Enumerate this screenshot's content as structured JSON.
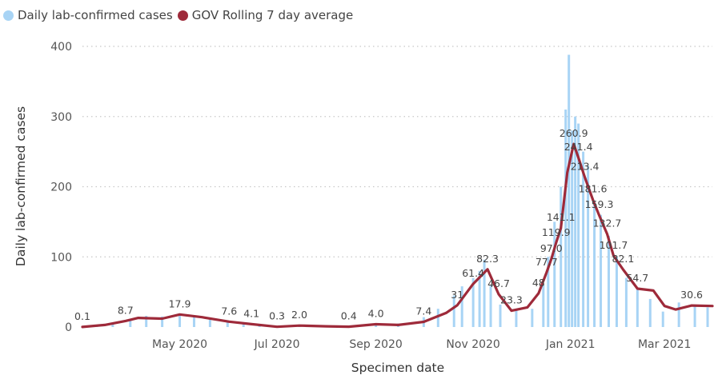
{
  "legend": {
    "items": [
      {
        "label": "Daily lab-confirmed cases",
        "color": "#a8d4f5"
      },
      {
        "label": "GOV Rolling 7 day average",
        "color": "#9e2a3a"
      }
    ]
  },
  "chart_data": {
    "type": "bar",
    "title": "",
    "xlabel": "Specimen date",
    "ylabel": "Daily lab-confirmed cases",
    "ylim": [
      0,
      400
    ],
    "yticks": [
      0,
      100,
      200,
      300,
      400
    ],
    "xlim": [
      "2020-03-01",
      "2021-03-31"
    ],
    "xticks": [
      {
        "date": "2020-05-01",
        "label": "May 2020"
      },
      {
        "date": "2020-07-01",
        "label": "Jul 2020"
      },
      {
        "date": "2020-09-01",
        "label": "Sep 2020"
      },
      {
        "date": "2020-11-01",
        "label": "Nov 2020"
      },
      {
        "date": "2021-01-01",
        "label": "Jan 2021"
      },
      {
        "date": "2021-03-01",
        "label": "Mar 2021"
      }
    ],
    "grid": true,
    "legend_position": "top-left",
    "series": [
      {
        "name": "Daily lab-confirmed cases",
        "type": "bar",
        "color": "#a8d4f5",
        "points": [
          [
            "2020-03-10",
            2
          ],
          [
            "2020-03-20",
            6
          ],
          [
            "2020-03-31",
            11
          ],
          [
            "2020-04-10",
            16
          ],
          [
            "2020-04-20",
            15
          ],
          [
            "2020-05-01",
            18
          ],
          [
            "2020-05-10",
            15
          ],
          [
            "2020-05-20",
            11
          ],
          [
            "2020-05-31",
            8
          ],
          [
            "2020-06-10",
            5
          ],
          [
            "2020-06-20",
            3
          ],
          [
            "2020-07-01",
            2
          ],
          [
            "2020-07-15",
            1
          ],
          [
            "2020-08-01",
            2
          ],
          [
            "2020-08-15",
            1
          ],
          [
            "2020-09-01",
            4
          ],
          [
            "2020-09-15",
            5
          ],
          [
            "2020-10-01",
            14
          ],
          [
            "2020-10-10",
            26
          ],
          [
            "2020-10-20",
            45
          ],
          [
            "2020-10-25",
            58
          ],
          [
            "2020-11-01",
            70
          ],
          [
            "2020-11-05",
            80
          ],
          [
            "2020-11-08",
            96
          ],
          [
            "2020-11-12",
            60
          ],
          [
            "2020-11-18",
            32
          ],
          [
            "2020-11-28",
            24
          ],
          [
            "2020-12-08",
            26
          ],
          [
            "2020-12-15",
            60
          ],
          [
            "2020-12-18",
            100
          ],
          [
            "2020-12-22",
            150
          ],
          [
            "2020-12-26",
            200
          ],
          [
            "2020-12-29",
            310
          ],
          [
            "2020-12-31",
            388
          ],
          [
            "2021-01-02",
            280
          ],
          [
            "2021-01-04",
            300
          ],
          [
            "2021-01-06",
            290
          ],
          [
            "2021-01-09",
            250
          ],
          [
            "2021-01-12",
            230
          ],
          [
            "2021-01-16",
            180
          ],
          [
            "2021-01-20",
            160
          ],
          [
            "2021-01-25",
            130
          ],
          [
            "2021-01-30",
            100
          ],
          [
            "2021-02-05",
            70
          ],
          [
            "2021-02-12",
            55
          ],
          [
            "2021-02-20",
            40
          ],
          [
            "2021-02-28",
            22
          ],
          [
            "2021-03-10",
            35
          ],
          [
            "2021-03-20",
            30
          ],
          [
            "2021-03-28",
            28
          ]
        ]
      },
      {
        "name": "GOV Rolling 7 day average",
        "type": "line",
        "color": "#9e2a3a",
        "points": [
          [
            "2020-03-01",
            0.1
          ],
          [
            "2020-03-15",
            3
          ],
          [
            "2020-03-28",
            8.7
          ],
          [
            "2020-04-05",
            13
          ],
          [
            "2020-04-20",
            12
          ],
          [
            "2020-05-01",
            17.9
          ],
          [
            "2020-05-15",
            14
          ],
          [
            "2020-06-01",
            7.6
          ],
          [
            "2020-06-15",
            4.1
          ],
          [
            "2020-07-01",
            0.3
          ],
          [
            "2020-07-15",
            2.0
          ],
          [
            "2020-08-01",
            1
          ],
          [
            "2020-08-15",
            0.4
          ],
          [
            "2020-09-01",
            4.0
          ],
          [
            "2020-09-15",
            3
          ],
          [
            "2020-10-01",
            7.4
          ],
          [
            "2020-10-15",
            20
          ],
          [
            "2020-10-22",
            31
          ],
          [
            "2020-11-01",
            61.4
          ],
          [
            "2020-11-10",
            82.3
          ],
          [
            "2020-11-17",
            46.7
          ],
          [
            "2020-11-25",
            23.3
          ],
          [
            "2020-12-05",
            28
          ],
          [
            "2020-12-12",
            48
          ],
          [
            "2020-12-17",
            77.7
          ],
          [
            "2020-12-20",
            97.0
          ],
          [
            "2020-12-23",
            119.9
          ],
          [
            "2020-12-26",
            141.1
          ],
          [
            "2020-12-30",
            220
          ],
          [
            "2021-01-03",
            260.9
          ],
          [
            "2021-01-06",
            241.4
          ],
          [
            "2021-01-10",
            213.4
          ],
          [
            "2021-01-15",
            181.6
          ],
          [
            "2021-01-19",
            159.3
          ],
          [
            "2021-01-24",
            132.7
          ],
          [
            "2021-01-28",
            101.7
          ],
          [
            "2021-02-03",
            82.1
          ],
          [
            "2021-02-12",
            54.7
          ],
          [
            "2021-02-22",
            52
          ],
          [
            "2021-03-01",
            30
          ],
          [
            "2021-03-08",
            25
          ],
          [
            "2021-03-18",
            30.6
          ],
          [
            "2021-03-31",
            30
          ]
        ]
      }
    ],
    "data_labels": [
      {
        "date": "2020-03-01",
        "value": 0.1,
        "text": "0.1"
      },
      {
        "date": "2020-03-28",
        "value": 8.7,
        "text": "8.7"
      },
      {
        "date": "2020-05-01",
        "value": 17.9,
        "text": "17.9"
      },
      {
        "date": "2020-06-01",
        "value": 7.6,
        "text": "7.6"
      },
      {
        "date": "2020-06-15",
        "value": 4.1,
        "text": "4.1"
      },
      {
        "date": "2020-07-01",
        "value": 0.3,
        "text": "0.3"
      },
      {
        "date": "2020-07-15",
        "value": 2.0,
        "text": "2.0"
      },
      {
        "date": "2020-08-15",
        "value": 0.4,
        "text": "0.4"
      },
      {
        "date": "2020-09-01",
        "value": 4.0,
        "text": "4.0"
      },
      {
        "date": "2020-10-01",
        "value": 7.4,
        "text": "7.4"
      },
      {
        "date": "2020-10-22",
        "value": 31,
        "text": "31"
      },
      {
        "date": "2020-11-01",
        "value": 61.4,
        "text": "61.4"
      },
      {
        "date": "2020-11-10",
        "value": 82.3,
        "text": "82.3"
      },
      {
        "date": "2020-11-17",
        "value": 46.7,
        "text": "46.7"
      },
      {
        "date": "2020-11-25",
        "value": 23.3,
        "text": "23.3"
      },
      {
        "date": "2020-12-12",
        "value": 48,
        "text": "48"
      },
      {
        "date": "2020-12-17",
        "value": 77.7,
        "text": "77.7"
      },
      {
        "date": "2020-12-20",
        "value": 97.0,
        "text": "97.0"
      },
      {
        "date": "2020-12-23",
        "value": 119.9,
        "text": "119.9"
      },
      {
        "date": "2020-12-26",
        "value": 141.1,
        "text": "141.1"
      },
      {
        "date": "2021-01-03",
        "value": 260.9,
        "text": "260.9"
      },
      {
        "date": "2021-01-06",
        "value": 241.4,
        "text": "241.4"
      },
      {
        "date": "2021-01-10",
        "value": 213.4,
        "text": "213.4"
      },
      {
        "date": "2021-01-15",
        "value": 181.6,
        "text": "181.6"
      },
      {
        "date": "2021-01-19",
        "value": 159.3,
        "text": "159.3"
      },
      {
        "date": "2021-01-24",
        "value": 132.7,
        "text": "132.7"
      },
      {
        "date": "2021-01-28",
        "value": 101.7,
        "text": "101.7"
      },
      {
        "date": "2021-02-03",
        "value": 82.1,
        "text": "82.1"
      },
      {
        "date": "2021-02-12",
        "value": 54.7,
        "text": "54.7"
      },
      {
        "date": "2021-03-18",
        "value": 30.6,
        "text": "30.6"
      }
    ]
  }
}
